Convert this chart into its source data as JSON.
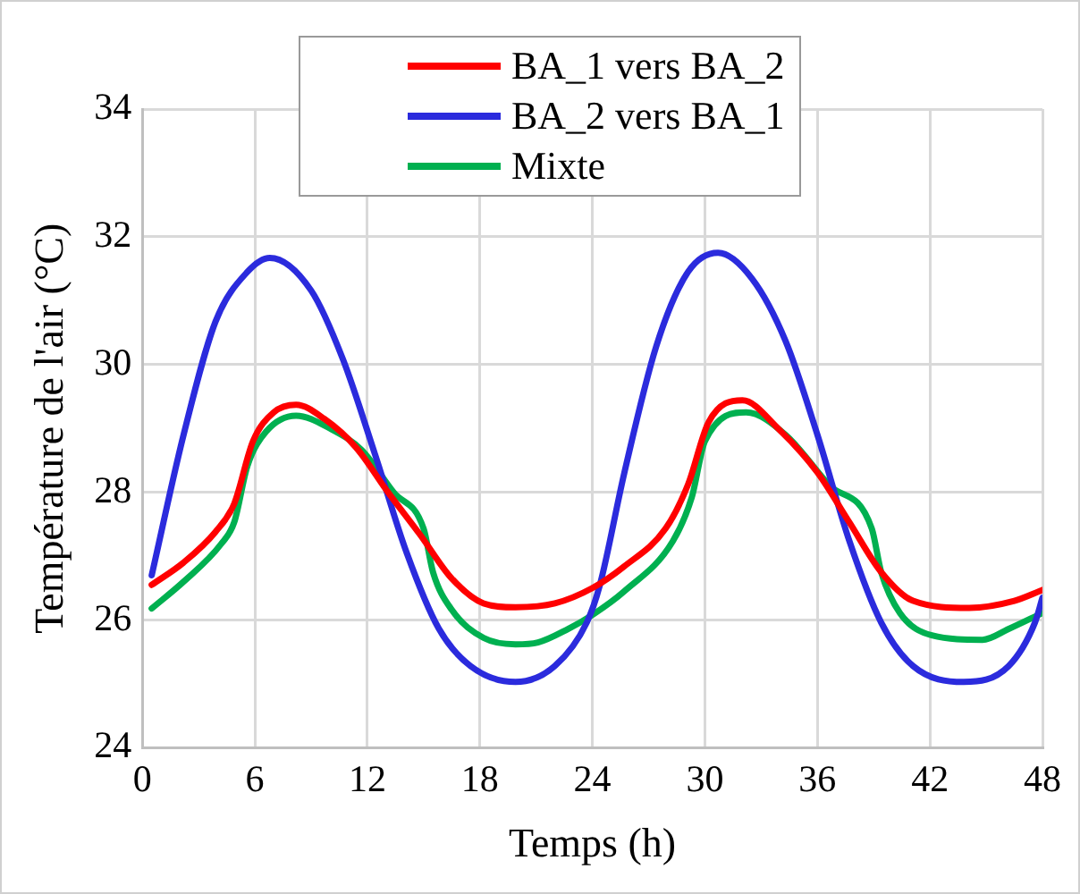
{
  "chart_data": {
    "type": "line",
    "xlabel": "Temps (h)",
    "ylabel": "Température de l'air (°C)",
    "xlim": [
      0,
      48
    ],
    "xticks": [
      0,
      6,
      12,
      18,
      24,
      30,
      36,
      42,
      48
    ],
    "ylim": [
      24,
      34
    ],
    "yticks": [
      24,
      26,
      28,
      30,
      32,
      34
    ],
    "grid": true,
    "legend": "top",
    "marker": "none",
    "line_style": "solid",
    "series": [
      {
        "name": "BA_1 vers BA_2",
        "color": "#ff0000",
        "x": [
          0.5,
          2.2,
          3.9,
          4.9,
          5.9,
          7.0,
          8.2,
          9.7,
          11.4,
          13.1,
          14.8,
          16.5,
          18.2,
          19.9,
          22.0,
          24.0,
          25.7,
          27.9,
          29.1,
          30.2,
          32.0,
          33.9,
          36.0,
          37.7,
          39.4,
          41.1,
          44.1,
          46.5,
          48.0
        ],
        "values": [
          26.55,
          26.9,
          27.38,
          27.82,
          28.8,
          29.25,
          29.37,
          29.15,
          28.7,
          28.0,
          27.34,
          26.65,
          26.26,
          26.2,
          26.26,
          26.5,
          26.84,
          27.43,
          28.12,
          29.1,
          29.44,
          29.0,
          28.31,
          27.53,
          26.75,
          26.3,
          26.19,
          26.3,
          26.47
        ]
      },
      {
        "name": "BA_2 vers BA_1",
        "color": "#2b2bdd",
        "x": [
          0.5,
          2.2,
          3.9,
          5.6,
          6.8,
          9.0,
          10.7,
          12.4,
          14.1,
          15.8,
          17.5,
          19.9,
          22.0,
          23.7,
          24.4,
          25.7,
          27.4,
          29.1,
          30.7,
          32.5,
          34.3,
          36.0,
          37.7,
          39.4,
          41.1,
          43.8,
          46.2,
          47.6,
          48.0
        ],
        "values": [
          26.7,
          28.9,
          30.67,
          31.45,
          31.67,
          31.16,
          30.08,
          28.6,
          27.05,
          25.87,
          25.28,
          25.03,
          25.28,
          25.96,
          26.55,
          28.3,
          30.28,
          31.45,
          31.75,
          31.35,
          30.37,
          28.9,
          27.24,
          25.96,
          25.28,
          25.03,
          25.28,
          25.96,
          26.35
        ]
      },
      {
        "name": "Mixte",
        "color": "#00b050",
        "x": [
          0.5,
          2.2,
          4.2,
          4.9,
          5.6,
          6.6,
          8.2,
          10.0,
          11.7,
          13.4,
          15.0,
          15.5,
          16.5,
          18.2,
          19.9,
          21.1,
          22.7,
          24.0,
          25.7,
          28.3,
          29.3,
          30.0,
          32.2,
          34.3,
          36.6,
          38.9,
          39.4,
          40.4,
          42.1,
          44.8,
          46.2,
          48.0
        ],
        "values": [
          26.18,
          26.6,
          27.19,
          27.53,
          28.41,
          28.95,
          29.2,
          29.0,
          28.66,
          28.0,
          27.43,
          26.75,
          26.16,
          25.72,
          25.62,
          25.65,
          25.86,
          26.08,
          26.45,
          27.24,
          27.92,
          28.8,
          29.25,
          28.9,
          28.12,
          27.43,
          26.75,
          26.11,
          25.76,
          25.69,
          25.86,
          26.11
        ]
      }
    ]
  }
}
